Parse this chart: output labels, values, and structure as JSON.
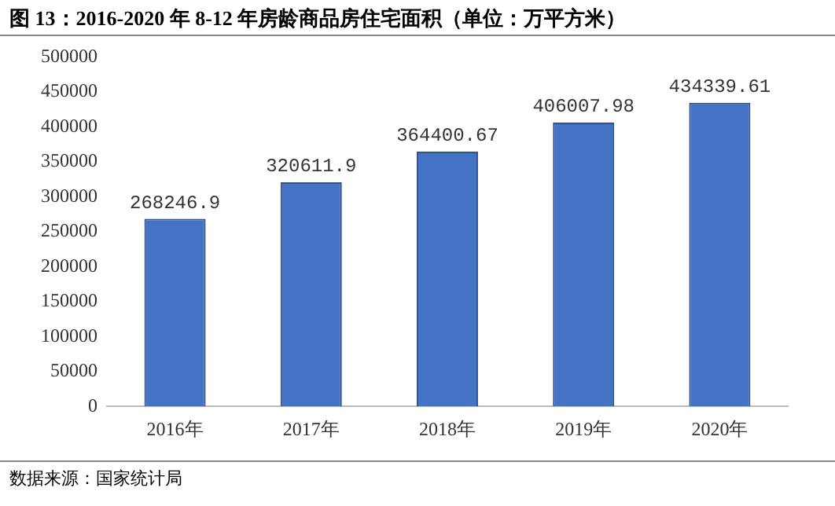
{
  "chart_data": {
    "type": "bar",
    "title": "图 13：2016-2020 年 8-12 年房龄商品房住宅面积（单位：万平方米）",
    "categories": [
      "2016年",
      "2017年",
      "2018年",
      "2019年",
      "2020年"
    ],
    "values": [
      268246.9,
      320611.9,
      364400.67,
      406007.98,
      434339.61
    ],
    "color": "#4472c4",
    "ylim": [
      0,
      500000
    ],
    "yticks": [
      0,
      50000,
      100000,
      150000,
      200000,
      250000,
      300000,
      350000,
      400000,
      450000,
      500000
    ],
    "grid": false,
    "data_labels": true,
    "annotations": [
      "数据来源：国家统计局"
    ]
  }
}
